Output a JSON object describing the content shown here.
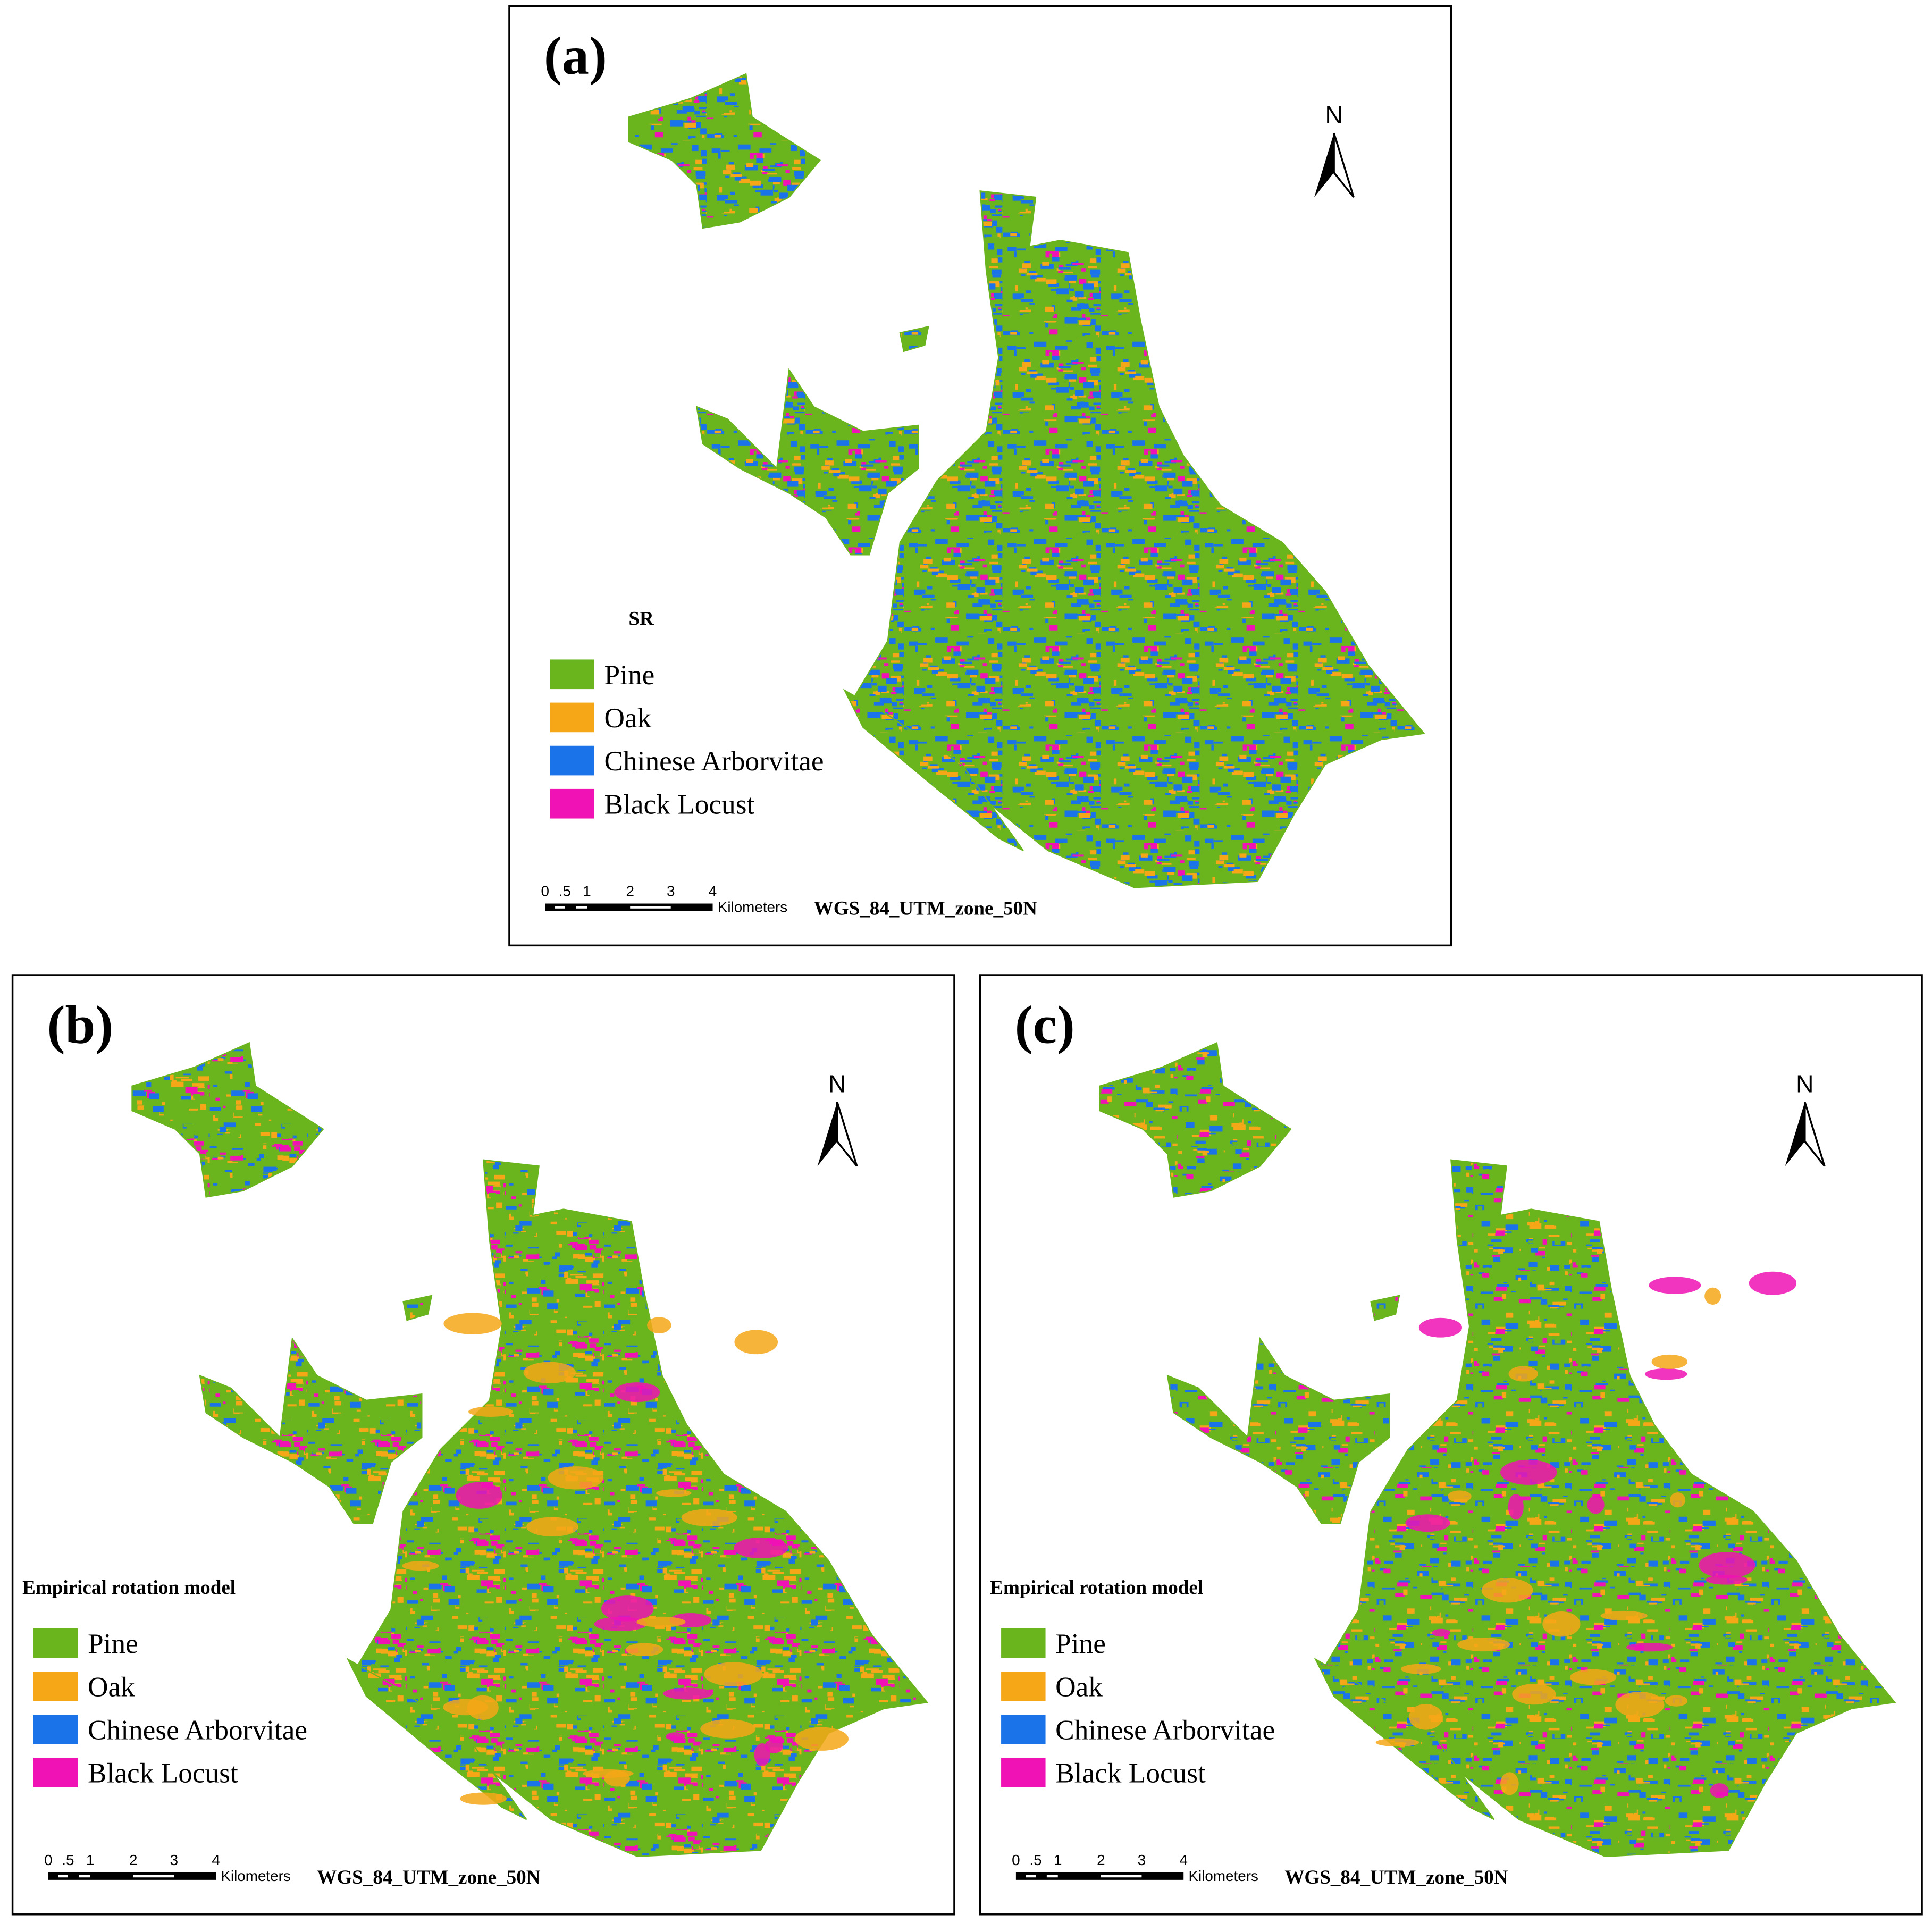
{
  "panels": [
    {
      "label": "(a)",
      "legend_title": "SR",
      "legend": [
        {
          "name": "Pine",
          "color": "#6ab51e"
        },
        {
          "name": "Oak",
          "color": "#f5a718"
        },
        {
          "name": "Chinese Arborvitae",
          "color": "#1a73e8"
        },
        {
          "name": "Black Locust",
          "color": "#f012b4"
        }
      ],
      "north": "N",
      "scale_labels": [
        "0",
        ".5",
        "1",
        "2",
        "3",
        "4"
      ],
      "scale_unit": "Kilometers",
      "projection": "WGS_84_UTM_zone_50N"
    },
    {
      "label": "(b)",
      "legend_title": "Empirical rotation model",
      "legend": [
        {
          "name": "Pine",
          "color": "#6ab51e"
        },
        {
          "name": "Oak",
          "color": "#f5a718"
        },
        {
          "name": "Chinese Arborvitae",
          "color": "#1a73e8"
        },
        {
          "name": "Black Locust",
          "color": "#f012b4"
        }
      ],
      "north": "N",
      "scale_labels": [
        "0",
        ".5",
        "1",
        "2",
        "3",
        "4"
      ],
      "scale_unit": "Kilometers",
      "projection": "WGS_84_UTM_zone_50N"
    },
    {
      "label": "(c)",
      "legend_title": "Empirical rotation model",
      "legend": [
        {
          "name": "Pine",
          "color": "#6ab51e"
        },
        {
          "name": "Oak",
          "color": "#f5a718"
        },
        {
          "name": "Chinese Arborvitae",
          "color": "#1a73e8"
        },
        {
          "name": "Black Locust",
          "color": "#f012b4"
        }
      ],
      "north": "N",
      "scale_labels": [
        "0",
        ".5",
        "1",
        "2",
        "3",
        "4"
      ],
      "scale_unit": "Kilometers",
      "projection": "WGS_84_UTM_zone_50N"
    }
  ]
}
